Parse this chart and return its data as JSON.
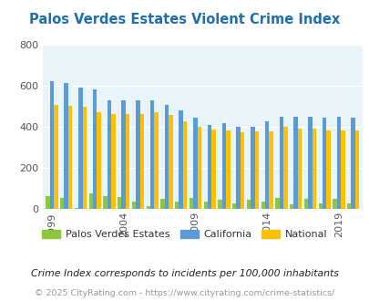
{
  "title": "Palos Verdes Estates Violent Crime Index",
  "years": [
    1999,
    2000,
    2001,
    2002,
    2003,
    2004,
    2005,
    2006,
    2007,
    2008,
    2009,
    2010,
    2011,
    2012,
    2013,
    2014,
    2015,
    2016,
    2017,
    2018,
    2019,
    2020
  ],
  "pve": [
    65,
    55,
    5,
    75,
    65,
    60,
    35,
    15,
    50,
    35,
    55,
    35,
    45,
    30,
    45,
    35,
    55,
    25,
    50,
    30,
    50,
    30
  ],
  "california": [
    625,
    615,
    595,
    585,
    530,
    530,
    530,
    530,
    510,
    480,
    445,
    410,
    420,
    400,
    400,
    430,
    450,
    450,
    450,
    445,
    450,
    445
  ],
  "national": [
    510,
    505,
    500,
    475,
    465,
    465,
    465,
    475,
    460,
    430,
    400,
    390,
    385,
    375,
    380,
    380,
    400,
    395,
    395,
    385,
    383,
    383
  ],
  "ylim": [
    0,
    800
  ],
  "yticks": [
    0,
    200,
    400,
    600,
    800
  ],
  "xtick_years": [
    1999,
    2004,
    2009,
    2014,
    2019
  ],
  "color_pve": "#8dc641",
  "color_california": "#5b9bd5",
  "color_national": "#ffc000",
  "bg_color": "#e8f4f8",
  "title_color": "#1f6fad",
  "footer1": "Crime Index corresponds to incidents per 100,000 inhabitants",
  "footer2": "© 2025 CityRating.com - https://www.cityrating.com/crime-statistics/",
  "bar_width": 0.28,
  "label_pve": "Palos Verdes Estates",
  "label_ca": "California",
  "label_nat": "National"
}
